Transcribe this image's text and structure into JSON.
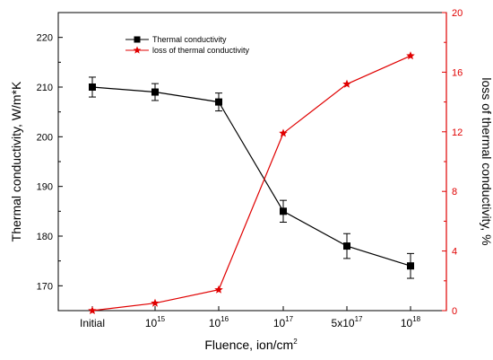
{
  "chart_data": {
    "type": "line",
    "xlabel": "Fluence, ion/cm",
    "xlabel_sup": "2",
    "ylabel_left": "Thermal conductivity, W/m*K",
    "ylabel_right": "loss of thermal conductivity, %",
    "categories": [
      {
        "base": "Initial",
        "exp": ""
      },
      {
        "base": "10",
        "exp": "15"
      },
      {
        "base": "10",
        "exp": "16"
      },
      {
        "base": "10",
        "exp": "17"
      },
      {
        "base": "5x10",
        "exp": "17"
      },
      {
        "base": "10",
        "exp": "18"
      }
    ],
    "left_axis": {
      "min": 165,
      "max": 225,
      "ticks": [
        170,
        180,
        190,
        200,
        210,
        220
      ]
    },
    "right_axis": {
      "min": 0,
      "max": 20,
      "ticks": [
        0,
        4,
        8,
        12,
        16,
        20
      ]
    },
    "legend_position": "top-center",
    "grid": false,
    "series": [
      {
        "name": "Thermal conductivity",
        "axis": "left",
        "color": "#000000",
        "marker": "square",
        "values": [
          210,
          209,
          207,
          185,
          178,
          174
        ],
        "errors": [
          2,
          1.7,
          1.8,
          2.2,
          2.5,
          2.5
        ]
      },
      {
        "name": "loss of thermal conductivity",
        "axis": "right",
        "color": "#e00000",
        "marker": "star",
        "values": [
          0,
          0.5,
          1.4,
          11.9,
          15.2,
          17.1
        ]
      }
    ]
  }
}
